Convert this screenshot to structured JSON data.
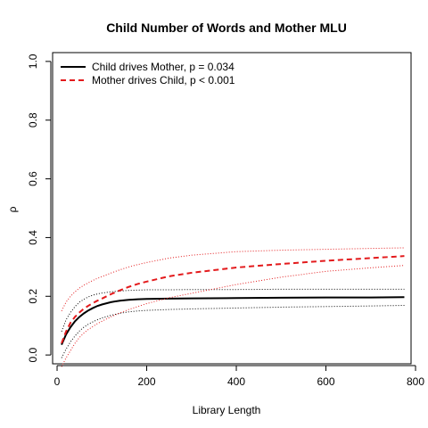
{
  "chart_data": {
    "type": "line",
    "title": "Child Number of Words and Mother MLU",
    "xlabel": "Library Length",
    "ylabel": "ρ",
    "xlim": [
      -10,
      790
    ],
    "ylim": [
      -0.03,
      1.03
    ],
    "xticks": [
      0,
      200,
      400,
      600,
      800
    ],
    "yticks": [
      0.0,
      0.2,
      0.4,
      0.6,
      0.8,
      1.0
    ],
    "xtick_labels": [
      "0",
      "200",
      "400",
      "600",
      "800"
    ],
    "ytick_labels": [
      "0.0",
      "0.2",
      "0.4",
      "0.6",
      "0.8",
      "1.0"
    ],
    "grid": false,
    "legend_position": "top-left",
    "series": [
      {
        "name": "Child drives Mother, p = 0.034",
        "color": "#000000",
        "style": "solid",
        "x": [
          10,
          20,
          30,
          40,
          50,
          60,
          70,
          80,
          90,
          100,
          120,
          140,
          160,
          180,
          200,
          250,
          300,
          400,
          500,
          600,
          700,
          775
        ],
        "values": [
          0.035,
          0.07,
          0.095,
          0.115,
          0.13,
          0.142,
          0.152,
          0.16,
          0.167,
          0.172,
          0.18,
          0.185,
          0.188,
          0.19,
          0.191,
          0.192,
          0.193,
          0.194,
          0.195,
          0.196,
          0.196,
          0.197
        ],
        "upper": [
          0.08,
          0.12,
          0.145,
          0.165,
          0.18,
          0.19,
          0.198,
          0.204,
          0.208,
          0.211,
          0.215,
          0.218,
          0.22,
          0.221,
          0.222,
          0.222,
          0.223,
          0.223,
          0.224,
          0.224,
          0.224,
          0.224
        ],
        "lower": [
          -0.01,
          0.02,
          0.045,
          0.065,
          0.082,
          0.095,
          0.105,
          0.113,
          0.12,
          0.126,
          0.135,
          0.142,
          0.147,
          0.15,
          0.152,
          0.155,
          0.157,
          0.16,
          0.163,
          0.165,
          0.167,
          0.169
        ]
      },
      {
        "name": "Mother drives Child, p < 0.001",
        "color": "#e31a1c",
        "style": "dashed",
        "x": [
          10,
          20,
          30,
          40,
          50,
          60,
          70,
          80,
          90,
          100,
          120,
          140,
          160,
          180,
          200,
          250,
          300,
          400,
          500,
          600,
          700,
          775
        ],
        "values": [
          0.04,
          0.08,
          0.11,
          0.13,
          0.145,
          0.158,
          0.168,
          0.177,
          0.185,
          0.192,
          0.207,
          0.22,
          0.232,
          0.242,
          0.25,
          0.268,
          0.28,
          0.298,
          0.31,
          0.321,
          0.33,
          0.337
        ],
        "upper": [
          0.15,
          0.18,
          0.2,
          0.215,
          0.228,
          0.238,
          0.246,
          0.254,
          0.261,
          0.267,
          0.279,
          0.29,
          0.3,
          0.308,
          0.315,
          0.33,
          0.34,
          0.352,
          0.357,
          0.36,
          0.363,
          0.365
        ],
        "lower": [
          -0.04,
          -0.01,
          0.015,
          0.04,
          0.06,
          0.075,
          0.087,
          0.097,
          0.107,
          0.115,
          0.13,
          0.143,
          0.155,
          0.165,
          0.175,
          0.195,
          0.21,
          0.24,
          0.265,
          0.285,
          0.297,
          0.305
        ]
      }
    ]
  }
}
